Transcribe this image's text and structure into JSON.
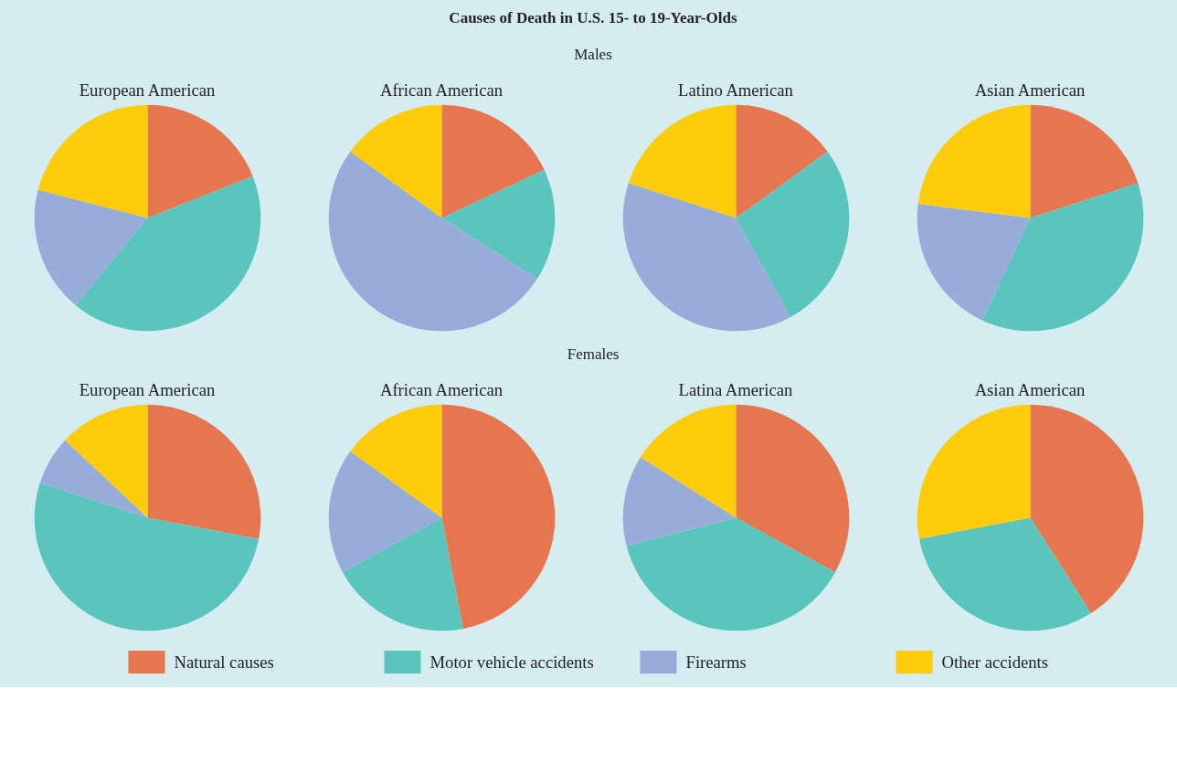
{
  "chart_data": [
    {
      "type": "pie",
      "title": "European American",
      "annotations": [
        "Causes of Death in U.S. 15- to 19-Year-Olds",
        "Males"
      ],
      "legend": "bottom",
      "categories": [
        "Natural causes",
        "Motor vehicle accidents",
        "Firearms",
        "Other accidents"
      ],
      "values": [
        19,
        42,
        18,
        21
      ],
      "colors": [
        "#e5764f",
        "#59c5bc",
        "#97acd8",
        "#fdcc0a"
      ]
    },
    {
      "type": "pie",
      "title": "African American",
      "values": [
        18,
        16,
        51,
        15
      ],
      "colors": [
        "#e5764f",
        "#59c5bc",
        "#97acd8",
        "#fdcc0a"
      ]
    },
    {
      "type": "pie",
      "title": "Latino American",
      "values": [
        15,
        27,
        38,
        20
      ],
      "colors": [
        "#e5764f",
        "#59c5bc",
        "#97acd8",
        "#fdcc0a"
      ]
    },
    {
      "type": "pie",
      "title": "Asian American",
      "values": [
        20,
        37,
        20,
        23
      ],
      "colors": [
        "#e5764f",
        "#59c5bc",
        "#97acd8",
        "#fdcc0a"
      ]
    },
    {
      "type": "pie",
      "title": "European American",
      "annotations": [
        "Females"
      ],
      "values": [
        28,
        52,
        7,
        13
      ],
      "colors": [
        "#e5764f",
        "#59c5bc",
        "#97acd8",
        "#fdcc0a"
      ]
    },
    {
      "type": "pie",
      "title": "African American",
      "values": [
        47,
        20,
        18,
        15
      ],
      "colors": [
        "#e5764f",
        "#59c5bc",
        "#97acd8",
        "#fdcc0a"
      ]
    },
    {
      "type": "pie",
      "title": "Latina American",
      "values": [
        33,
        38,
        13,
        16
      ],
      "colors": [
        "#e5764f",
        "#59c5bc",
        "#97acd8",
        "#fdcc0a"
      ]
    },
    {
      "type": "pie",
      "title": "Asian American",
      "values": [
        41,
        31,
        0,
        28
      ],
      "colors": [
        "#e5764f",
        "#59c5bc",
        "#97acd8",
        "#fdcc0a"
      ]
    }
  ]
}
